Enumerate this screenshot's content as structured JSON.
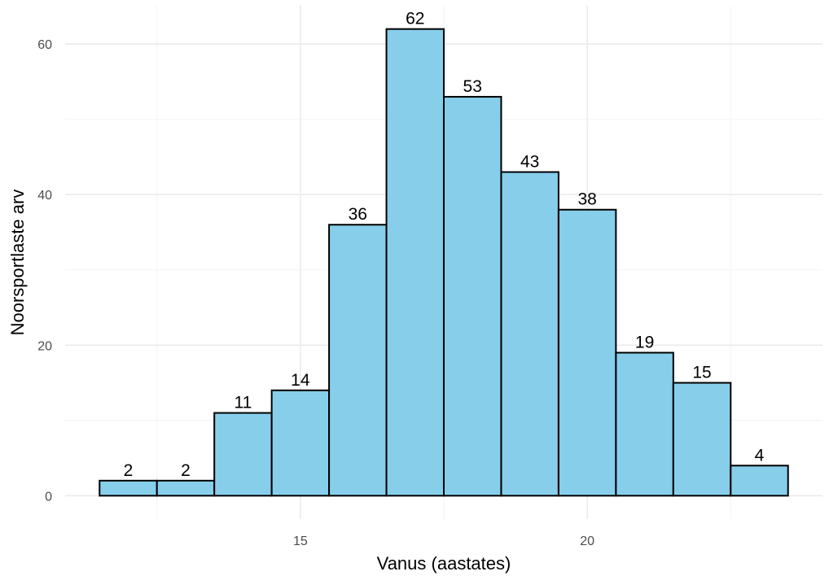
{
  "chart_data": {
    "type": "bar",
    "subtype": "histogram",
    "xlabel": "Vanus (aastates)",
    "ylabel": "Noorsportlaste arv",
    "bin_centers": [
      12,
      13,
      14,
      15,
      16,
      17,
      18,
      19,
      20,
      21,
      22,
      23
    ],
    "bin_width": 1,
    "values": [
      2,
      2,
      11,
      14,
      36,
      62,
      53,
      43,
      38,
      19,
      15,
      4
    ],
    "data_labels": [
      "2",
      "2",
      "11",
      "14",
      "36",
      "62",
      "53",
      "43",
      "38",
      "19",
      "15",
      "4"
    ],
    "xlim": [
      10.9,
      24.1
    ],
    "ylim": [
      -3.1,
      65.1
    ],
    "x_ticks": [
      15,
      20
    ],
    "x_tick_labels": [
      "15",
      "20"
    ],
    "x_minor_ticks": [
      12.5,
      17.5,
      22.5
    ],
    "y_ticks": [
      0,
      20,
      40,
      60
    ],
    "y_tick_labels": [
      "0",
      "20",
      "40",
      "60"
    ],
    "y_minor_ticks": [
      10,
      30,
      50
    ],
    "grid": true,
    "legend": "none",
    "colors": {
      "bar_fill": "#87ceeb",
      "bar_outline": "#000000",
      "grid": "#ebebeb"
    }
  }
}
